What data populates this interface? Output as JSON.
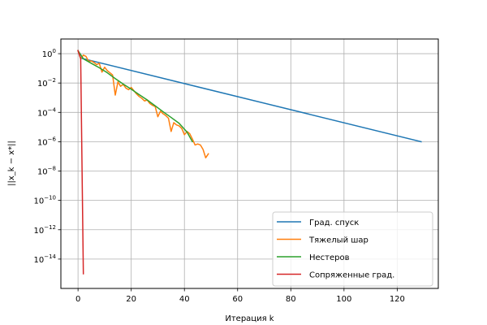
{
  "chart_data": {
    "type": "line",
    "title": "",
    "xlabel": "Итерация k",
    "ylabel": "||x_k − x*||",
    "xlim": [
      -6.45,
      135.45
    ],
    "ylim": [
      1e-16,
      10.0
    ],
    "yscale": "log",
    "grid": true,
    "legend_position": "lower-right",
    "x_ticks": [
      0,
      20,
      40,
      60,
      80,
      100,
      120
    ],
    "y_tick_exponents": [
      0,
      -2,
      -4,
      -6,
      -8,
      -10,
      -12,
      -14
    ],
    "series": [
      {
        "name": "Град. спуск",
        "color": "#1f77b4",
        "x": [
          0,
          1,
          129
        ],
        "y": [
          1.6,
          0.5,
          1e-06
        ]
      },
      {
        "name": "Тяжелый шар",
        "color": "#ff7f0e",
        "x": [
          0,
          1,
          2,
          3,
          4,
          5,
          6,
          7,
          8,
          9,
          10,
          11,
          12,
          13,
          14,
          15,
          16,
          17,
          18,
          19,
          20,
          21,
          22,
          23,
          24,
          25,
          26,
          27,
          28,
          29,
          30,
          31,
          32,
          33,
          34,
          35,
          36,
          37,
          38,
          39,
          40,
          41,
          42,
          43,
          44,
          45,
          46,
          47,
          48,
          49
        ],
        "y": [
          1.6,
          0.45,
          0.8,
          0.65,
          0.3,
          0.32,
          0.25,
          0.18,
          0.22,
          0.055,
          0.12,
          0.07,
          0.05,
          0.035,
          0.0015,
          0.012,
          0.006,
          0.008,
          0.0045,
          0.0035,
          0.005,
          0.003,
          0.0018,
          0.0012,
          0.0009,
          0.0006,
          0.0007,
          0.0004,
          0.0003,
          0.00025,
          5e-05,
          0.00012,
          8e-05,
          6e-05,
          4e-05,
          5e-06,
          2e-05,
          1.4e-05,
          1.2e-05,
          8e-06,
          3e-06,
          5e-06,
          3.5e-06,
          1.5e-06,
          6e-07,
          7e-07,
          6e-07,
          3e-07,
          8e-08,
          1.5e-07
        ]
      },
      {
        "name": "Нестеров",
        "color": "#2ca02c",
        "x": [
          0,
          2,
          5,
          8,
          11,
          14,
          17,
          20,
          23,
          26,
          29,
          32,
          35,
          38,
          41,
          43
        ],
        "y": [
          1.6,
          0.45,
          0.22,
          0.11,
          0.05,
          0.02,
          0.0085,
          0.0038,
          0.0016,
          0.0007,
          0.00028,
          0.00011,
          4.5e-05,
          1.8e-05,
          4.5e-06,
          1e-06
        ]
      },
      {
        "name": "Сопряженные град.",
        "color": "#d62728",
        "x": [
          0,
          1,
          2
        ],
        "y": [
          1.6,
          0.45,
          1e-15
        ]
      }
    ]
  }
}
